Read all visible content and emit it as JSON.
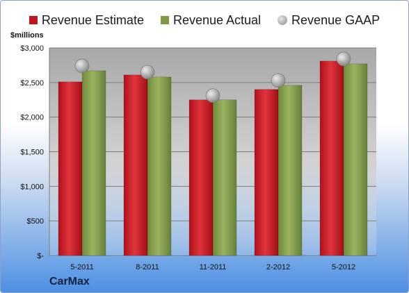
{
  "chart_data": {
    "type": "bar",
    "title": "",
    "ylabel": "$millions",
    "company": "CarMax",
    "categories": [
      "5-2011",
      "8-2011",
      "11-2011",
      "2-2012",
      "5-2012"
    ],
    "y_ticks": [
      "$-",
      "$500",
      "$1,000",
      "$1,500",
      "$2,000",
      "$2,500",
      "$3,000"
    ],
    "ylim": [
      0,
      3000
    ],
    "legend_position": "top",
    "grid": true,
    "series": [
      {
        "name": "Revenue Estimate",
        "kind": "bar",
        "color": "#c0151f",
        "values": [
          2510,
          2610,
          2250,
          2400,
          2810
        ]
      },
      {
        "name": "Revenue Actual",
        "kind": "bar",
        "color": "#7f9a45",
        "values": [
          2670,
          2580,
          2250,
          2460,
          2770
        ]
      },
      {
        "name": "Revenue GAAP",
        "kind": "marker",
        "color": "#a9a9a9",
        "values": [
          2740,
          2650,
          2310,
          2530,
          2840
        ]
      }
    ]
  }
}
